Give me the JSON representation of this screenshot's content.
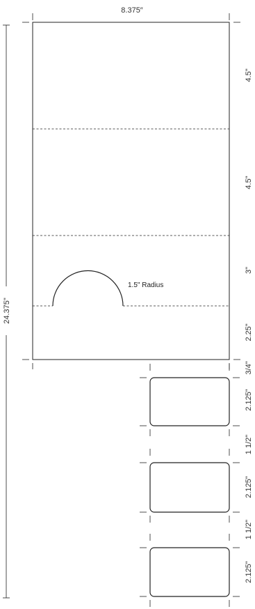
{
  "width_label": "8.375″",
  "total_height_label": "24.375\"",
  "note": "1.5\" Radius",
  "sections": [
    "4.5\"",
    "4.5\"",
    "3\"",
    "2.25\""
  ],
  "gap_label": "3/4\"",
  "cards": [
    {
      "height_label": "2.125\"",
      "gap_after_label": "1 1/2\""
    },
    {
      "height_label": "2.125\"",
      "gap_after_label": "1 1/2\""
    },
    {
      "height_label": "2.125\""
    }
  ],
  "colors": {
    "line": "#222222",
    "text": "#333333"
  }
}
